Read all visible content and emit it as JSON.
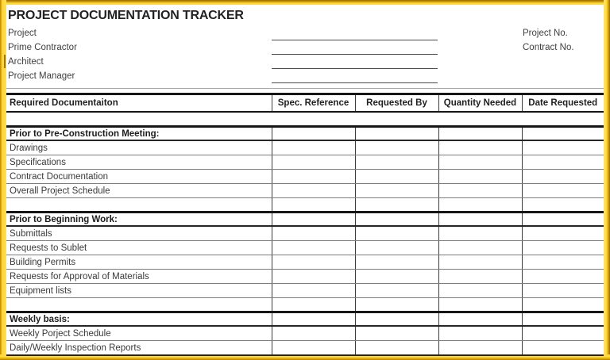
{
  "title": "PROJECT DOCUMENTATION TRACKER",
  "form": {
    "fields_left": [
      "Project",
      "Prime Contractor",
      "Architect",
      "Project Manager"
    ],
    "fields_right": [
      "Project No.",
      "Contract No."
    ]
  },
  "table": {
    "columns": [
      "Required Documentaiton",
      "Spec. Reference",
      "Requested By",
      "Quantity Needed",
      "Date Requested"
    ],
    "sections": [
      {
        "heading": "Prior to Pre-Construction Meeting:",
        "items": [
          "Drawings",
          "Specifications",
          "Contract Documentation",
          "Overall Project Schedule"
        ]
      },
      {
        "heading": "Prior to Beginning Work:",
        "items": [
          "Submittals",
          "Requests to Sublet",
          "Building Permits",
          "Requests for Approval of Materials",
          "Equipment lists"
        ]
      },
      {
        "heading": "Weekly basis:",
        "items": [
          "Weekly Porject Schedule",
          "Daily/Weekly Inspection Reports"
        ]
      }
    ]
  },
  "colors": {
    "frame_yellow": "#FFD93F",
    "frame_gold": "#C89200",
    "grid_thick": "#161616",
    "grid_thin": "#7D7D7D",
    "text": "#3A3A3A"
  }
}
